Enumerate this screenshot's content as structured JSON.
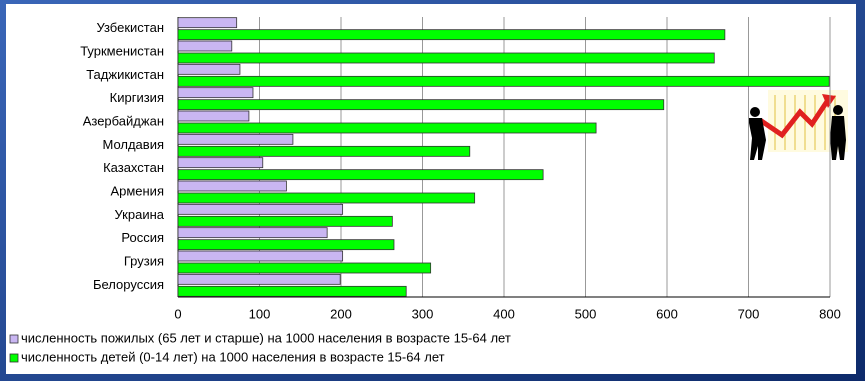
{
  "chart_data": {
    "type": "hbar",
    "categories": [
      "Узбекистан",
      "Туркменистан",
      "Таджикистан",
      "Киргизия",
      "Азербайджан",
      "Молдавия",
      "Казахстан",
      "Армения",
      "Украина",
      "Россия",
      "Грузия",
      "Белоруссия"
    ],
    "series": [
      {
        "name": "численность пожилых (65 лет и старше) на 1000 населения в возрасте 15-64 лет",
        "color": "#c9b6f2",
        "values": [
          72,
          66,
          76,
          92,
          87,
          141,
          104,
          133,
          202,
          183,
          202,
          199
        ]
      },
      {
        "name": "численность детей (0-14 лет) на 1000 населения в возрасте 15-64 лет",
        "color": "#00ff00",
        "values": [
          671,
          658,
          799,
          596,
          513,
          358,
          448,
          364,
          263,
          265,
          310,
          280
        ]
      }
    ],
    "xlim": [
      0,
      800
    ],
    "xticks": [
      0,
      100,
      200,
      300,
      400,
      500,
      600,
      700,
      800
    ],
    "grid": true
  }
}
